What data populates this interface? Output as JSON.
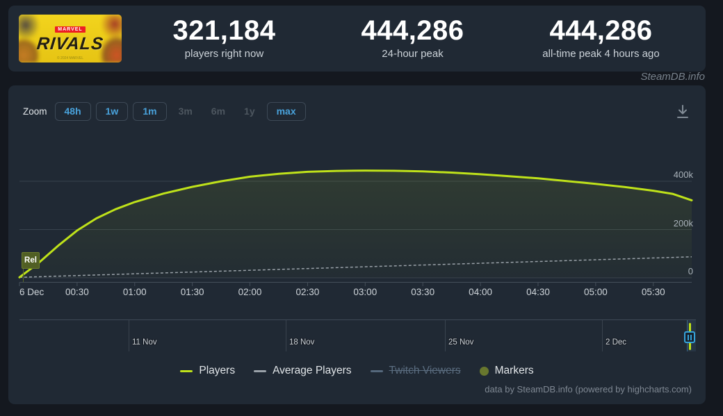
{
  "header": {
    "banner": {
      "brand": "MARVEL",
      "title": "RIVALS",
      "copyright": "© 2024 MARVEL"
    },
    "stats": [
      {
        "value": "321,184",
        "label": "players right now"
      },
      {
        "value": "444,286",
        "label": "24-hour peak"
      },
      {
        "value": "444,286",
        "label": "all-time peak 4 hours ago"
      }
    ]
  },
  "watermark": "SteamDB.info",
  "toolbar": {
    "zoom_label": "Zoom",
    "buttons": [
      {
        "label": "48h",
        "enabled": true
      },
      {
        "label": "1w",
        "enabled": true
      },
      {
        "label": "1m",
        "enabled": true
      },
      {
        "label": "3m",
        "enabled": false
      },
      {
        "label": "6m",
        "enabled": false
      },
      {
        "label": "1y",
        "enabled": false
      },
      {
        "label": "max",
        "enabled": true
      }
    ]
  },
  "legend": [
    {
      "label": "Players",
      "color": "#bfe21a",
      "shape": "line",
      "disabled": false
    },
    {
      "label": "Average Players",
      "color": "#9aa2a9",
      "shape": "line",
      "disabled": false
    },
    {
      "label": "Twitch Viewers",
      "color": "#55687c",
      "shape": "line",
      "disabled": true
    },
    {
      "label": "Markers",
      "color": "#68772e",
      "shape": "circle",
      "disabled": false
    }
  ],
  "chart_data": {
    "type": "line",
    "title": "",
    "xlabel": "",
    "ylabel": "",
    "x_ticks": [
      "6 Dec",
      "00:30",
      "01:00",
      "01:30",
      "02:00",
      "02:30",
      "03:00",
      "03:30",
      "04:00",
      "04:30",
      "05:00",
      "05:30"
    ],
    "x_minutes_range": [
      0,
      350
    ],
    "y_ticks": [
      {
        "label": "400k",
        "value": 400000
      },
      {
        "label": "200k",
        "value": 200000
      },
      {
        "label": "0",
        "value": 0
      }
    ],
    "ylim": [
      0,
      560000
    ],
    "grid": true,
    "legend_position": "bottom",
    "series": [
      {
        "name": "Players",
        "color": "#bfe21a",
        "style": "solid",
        "points": [
          [
            0,
            2000
          ],
          [
            10,
            62000
          ],
          [
            20,
            132000
          ],
          [
            30,
            196000
          ],
          [
            40,
            246000
          ],
          [
            50,
            284000
          ],
          [
            60,
            314000
          ],
          [
            75,
            349000
          ],
          [
            90,
            377000
          ],
          [
            105,
            400000
          ],
          [
            120,
            419000
          ],
          [
            135,
            431000
          ],
          [
            150,
            439000
          ],
          [
            165,
            443000
          ],
          [
            180,
            444286
          ],
          [
            195,
            443500
          ],
          [
            210,
            441000
          ],
          [
            225,
            436000
          ],
          [
            240,
            429000
          ],
          [
            255,
            421000
          ],
          [
            270,
            412000
          ],
          [
            285,
            401000
          ],
          [
            300,
            389000
          ],
          [
            315,
            376000
          ],
          [
            330,
            361000
          ],
          [
            340,
            348000
          ],
          [
            350,
            321184
          ]
        ]
      },
      {
        "name": "Average Players",
        "color": "#9aa2a9",
        "style": "dashed",
        "points": [
          [
            0,
            2000
          ],
          [
            350,
            87000
          ]
        ]
      },
      {
        "name": "Twitch Viewers",
        "color": "#55687c",
        "style": "solid",
        "visible": false,
        "points": []
      }
    ],
    "markers": [
      {
        "label": "Rel",
        "x_minute": 0
      }
    ],
    "navigator": {
      "dates": [
        "11 Nov",
        "18 Nov",
        "25 Nov",
        "2 Dec"
      ]
    },
    "credit": "data by SteamDB.info (powered by highcharts.com)"
  }
}
